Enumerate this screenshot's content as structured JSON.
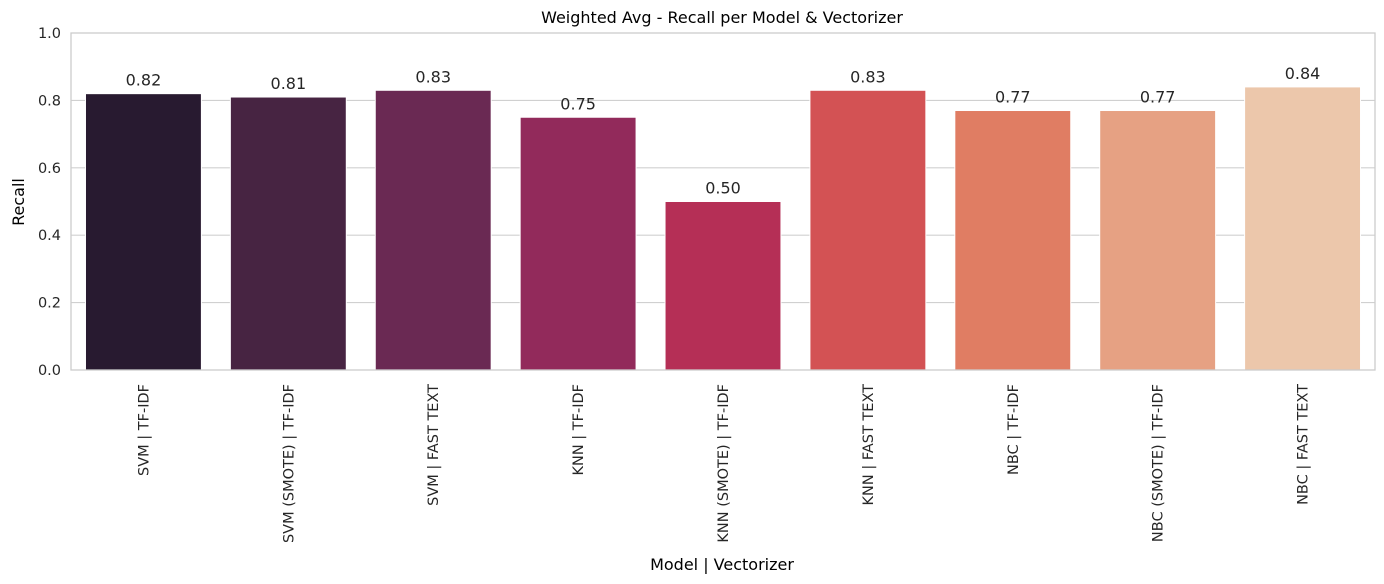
{
  "chart_data": {
    "type": "bar",
    "title": "Weighted Avg - Recall per Model & Vectorizer",
    "xlabel": "Model | Vectorizer",
    "ylabel": "Recall",
    "ylim": [
      0,
      1.0
    ],
    "yticks": [
      "0.0",
      "0.2",
      "0.4",
      "0.6",
      "0.8",
      "1.0"
    ],
    "grid": true,
    "categories": [
      "SVM | TF-IDF",
      "SVM (SMOTE) | TF-IDF",
      "SVM | FAST TEXT",
      "KNN | TF-IDF",
      "KNN (SMOTE) | TF-IDF",
      "KNN | FAST TEXT",
      "NBC | TF-IDF",
      "NBC (SMOTE) | TF-IDF",
      "NBC | FAST TEXT"
    ],
    "values": [
      0.82,
      0.81,
      0.83,
      0.75,
      0.5,
      0.83,
      0.77,
      0.77,
      0.84
    ],
    "value_labels": [
      "0.82",
      "0.81",
      "0.83",
      "0.75",
      "0.50",
      "0.83",
      "0.77",
      "0.77",
      "0.84"
    ],
    "colors": [
      "#281a30",
      "#472442",
      "#6a2953",
      "#922a5b",
      "#b52f56",
      "#d35254",
      "#e07d63",
      "#e6a183",
      "#ecc7ab"
    ]
  }
}
